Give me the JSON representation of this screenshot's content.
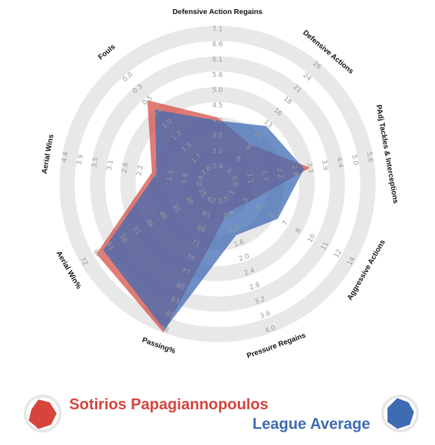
{
  "colors": {
    "player": "#d6443c",
    "average": "#3f6bb3",
    "ring": "#e8e8e8"
  },
  "legend": {
    "player_name": "Sotirios Papagiannopoulos",
    "average_name": "League Average"
  },
  "chart_data": {
    "type": "radar",
    "title": "",
    "grid": true,
    "legend_placement": "bottom",
    "axes": [
      {
        "label": "Defensive Action Regains",
        "ticks": [
          "2.4",
          "3.0",
          "3.5",
          "4.0",
          "4.5",
          "5.0",
          "5.6",
          "6.1",
          "6.6",
          "7.1"
        ],
        "rotation": 0
      },
      {
        "label": "Defensive Actions",
        "ticks": [
          "3",
          "6",
          "8",
          "11",
          "13",
          "16",
          "18",
          "21",
          "24",
          "26"
        ],
        "rotation": 36
      },
      {
        "label": "PAdj Tackles & Interceptions",
        "ticks": [
          "0.6",
          "1.1",
          "1.7",
          "2.2",
          "2.8",
          "3.3",
          "3.9",
          "4.4",
          "5.0",
          "5.6"
        ],
        "rotation": 72
      },
      {
        "label": "Aggressive Actions",
        "ticks": [
          "1",
          "3",
          "4",
          "6",
          "7",
          "8",
          "10",
          "11",
          "12",
          "14"
        ],
        "rotation": 108
      },
      {
        "label": "Pressure Regains",
        "ticks": [
          "0.5",
          "0.9",
          "1.3",
          "1.6",
          "2.0",
          "2.4",
          "2.8",
          "3.2",
          "3.6",
          "4.0"
        ],
        "rotation": 144
      },
      {
        "label": "Passing%",
        "ticks": [
          "62",
          "65",
          "68",
          "71",
          "74",
          "77",
          "80",
          "83",
          "85",
          "88"
        ],
        "rotation": 0
      },
      {
        "label": "Aerial Win%",
        "ticks": [
          "25",
          "30",
          "35",
          "40",
          "46",
          "51",
          "56",
          "61",
          "67",
          "72"
        ],
        "rotation": 36
      },
      {
        "label": "Aerial Wins",
        "ticks": [
          "0.4",
          "0.9",
          "1.3",
          "1.7",
          "2.2",
          "2.6",
          "3.1",
          "3.5",
          "3.9",
          "4.4"
        ],
        "rotation": 72
      },
      {
        "label": "Fouls",
        "ticks": [
          "2.0",
          "1.7",
          "1.5",
          "1.2",
          "1.0",
          "0.8",
          "0.5",
          "0.3",
          "0.0"
        ],
        "rotation": -36
      }
    ],
    "series": [
      {
        "name": "Sotirios Papagiannopoulos",
        "values_fraction": [
          0.4,
          0.3,
          0.58,
          0.2,
          0.16,
          1.0,
          0.88,
          0.4,
          0.68
        ]
      },
      {
        "name": "League Average",
        "values_fraction": [
          0.38,
          0.46,
          0.54,
          0.42,
          0.32,
          0.98,
          0.83,
          0.37,
          0.6
        ]
      }
    ]
  }
}
